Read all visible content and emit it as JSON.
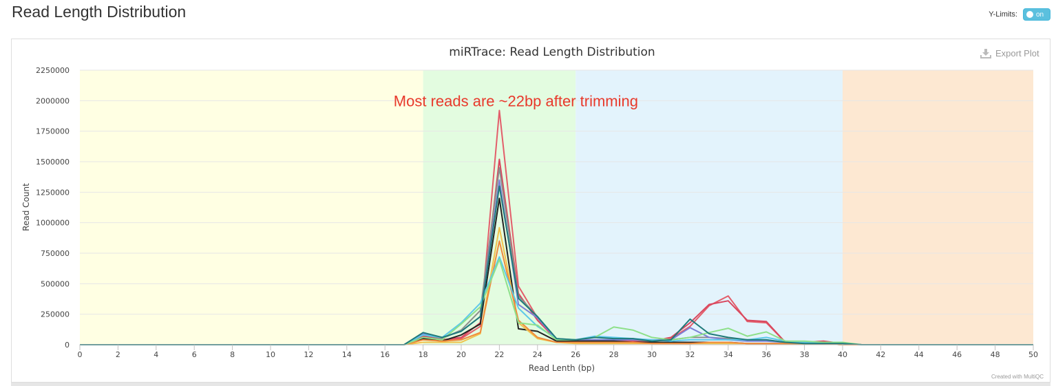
{
  "header": {
    "title": "Read Length Distribution"
  },
  "ylimits": {
    "label": "Y-Limits:",
    "toggle_text": "on"
  },
  "export": {
    "label": "Export Plot",
    "icon": "download-icon"
  },
  "credit": "Created with MultiQC",
  "chart_data": {
    "type": "line",
    "title": "miRTrace: Read Length Distribution",
    "xlabel": "Read Lenth (bp)",
    "ylabel": "Read Count",
    "xlim": [
      0,
      50
    ],
    "ylim": [
      0,
      2250000
    ],
    "xticks": [
      0,
      2,
      4,
      6,
      8,
      10,
      12,
      14,
      16,
      18,
      20,
      22,
      24,
      26,
      28,
      30,
      32,
      34,
      36,
      38,
      40,
      42,
      44,
      46,
      48,
      50
    ],
    "yticks": [
      0,
      250000,
      500000,
      750000,
      1000000,
      1250000,
      1500000,
      1750000,
      2000000,
      2250000
    ],
    "grid": true,
    "annotation": {
      "text": "Most reads are ~22bp after trimming",
      "x": 22,
      "y": 2000000,
      "color": "#e8392b"
    },
    "bands": [
      {
        "from": 0,
        "to": 18,
        "color": "#ffffe3"
      },
      {
        "from": 18,
        "to": 26,
        "color": "#e3fce0"
      },
      {
        "from": 26,
        "to": 40,
        "color": "#e3f3fc"
      },
      {
        "from": 40,
        "to": 50,
        "color": "#fde8d2"
      }
    ],
    "series": [
      {
        "color": "#e35d6a",
        "points": [
          [
            0,
            0
          ],
          [
            17,
            0
          ],
          [
            18,
            60000
          ],
          [
            19,
            30000
          ],
          [
            20,
            50000
          ],
          [
            21,
            150000
          ],
          [
            22,
            1920000
          ],
          [
            23,
            480000
          ],
          [
            24,
            220000
          ],
          [
            25,
            40000
          ],
          [
            26,
            30000
          ],
          [
            27,
            30000
          ],
          [
            28,
            30000
          ],
          [
            29,
            30000
          ],
          [
            30,
            30000
          ],
          [
            31,
            50000
          ],
          [
            32,
            150000
          ],
          [
            33,
            320000
          ],
          [
            34,
            400000
          ],
          [
            35,
            190000
          ],
          [
            36,
            180000
          ],
          [
            37,
            20000
          ],
          [
            38,
            10000
          ],
          [
            39,
            20000
          ],
          [
            40,
            10000
          ],
          [
            41,
            0
          ],
          [
            50,
            0
          ]
        ]
      },
      {
        "color": "#d9475e",
        "points": [
          [
            0,
            0
          ],
          [
            17,
            0
          ],
          [
            18,
            70000
          ],
          [
            19,
            40000
          ],
          [
            20,
            60000
          ],
          [
            21,
            180000
          ],
          [
            22,
            1520000
          ],
          [
            23,
            420000
          ],
          [
            24,
            200000
          ],
          [
            25,
            40000
          ],
          [
            26,
            30000
          ],
          [
            27,
            40000
          ],
          [
            28,
            30000
          ],
          [
            29,
            30000
          ],
          [
            30,
            30000
          ],
          [
            31,
            60000
          ],
          [
            32,
            180000
          ],
          [
            33,
            330000
          ],
          [
            34,
            360000
          ],
          [
            35,
            200000
          ],
          [
            36,
            190000
          ],
          [
            37,
            20000
          ],
          [
            38,
            20000
          ],
          [
            39,
            30000
          ],
          [
            40,
            10000
          ],
          [
            41,
            0
          ],
          [
            50,
            0
          ]
        ]
      },
      {
        "color": "#8d8d8d",
        "points": [
          [
            0,
            0
          ],
          [
            17,
            0
          ],
          [
            18,
            80000
          ],
          [
            19,
            50000
          ],
          [
            20,
            120000
          ],
          [
            21,
            280000
          ],
          [
            22,
            1450000
          ],
          [
            23,
            400000
          ],
          [
            24,
            230000
          ],
          [
            25,
            40000
          ],
          [
            26,
            40000
          ],
          [
            27,
            40000
          ],
          [
            28,
            40000
          ],
          [
            29,
            40000
          ],
          [
            30,
            30000
          ],
          [
            31,
            40000
          ],
          [
            32,
            60000
          ],
          [
            33,
            60000
          ],
          [
            34,
            50000
          ],
          [
            35,
            40000
          ],
          [
            36,
            40000
          ],
          [
            37,
            20000
          ],
          [
            38,
            10000
          ],
          [
            39,
            10000
          ],
          [
            40,
            10000
          ],
          [
            41,
            0
          ],
          [
            50,
            0
          ]
        ]
      },
      {
        "color": "#7c80d6",
        "points": [
          [
            0,
            0
          ],
          [
            17,
            0
          ],
          [
            18,
            90000
          ],
          [
            19,
            60000
          ],
          [
            20,
            110000
          ],
          [
            21,
            230000
          ],
          [
            22,
            1350000
          ],
          [
            23,
            330000
          ],
          [
            24,
            220000
          ],
          [
            25,
            40000
          ],
          [
            26,
            40000
          ],
          [
            27,
            40000
          ],
          [
            28,
            40000
          ],
          [
            29,
            40000
          ],
          [
            30,
            40000
          ],
          [
            31,
            40000
          ],
          [
            32,
            140000
          ],
          [
            33,
            60000
          ],
          [
            34,
            40000
          ],
          [
            35,
            30000
          ],
          [
            36,
            30000
          ],
          [
            37,
            20000
          ],
          [
            38,
            10000
          ],
          [
            39,
            10000
          ],
          [
            40,
            10000
          ],
          [
            41,
            0
          ],
          [
            50,
            0
          ]
        ]
      },
      {
        "color": "#222222",
        "points": [
          [
            0,
            0
          ],
          [
            17,
            0
          ],
          [
            18,
            50000
          ],
          [
            19,
            30000
          ],
          [
            20,
            80000
          ],
          [
            21,
            170000
          ],
          [
            22,
            1200000
          ],
          [
            23,
            130000
          ],
          [
            24,
            110000
          ],
          [
            25,
            30000
          ],
          [
            26,
            30000
          ],
          [
            27,
            30000
          ],
          [
            28,
            30000
          ],
          [
            29,
            20000
          ],
          [
            30,
            20000
          ],
          [
            31,
            20000
          ],
          [
            32,
            20000
          ],
          [
            33,
            20000
          ],
          [
            34,
            20000
          ],
          [
            35,
            10000
          ],
          [
            36,
            10000
          ],
          [
            37,
            10000
          ],
          [
            38,
            10000
          ],
          [
            39,
            10000
          ],
          [
            40,
            0
          ],
          [
            41,
            0
          ],
          [
            50,
            0
          ]
        ]
      },
      {
        "color": "#f0c24b",
        "points": [
          [
            0,
            0
          ],
          [
            17,
            0
          ],
          [
            18,
            20000
          ],
          [
            19,
            20000
          ],
          [
            20,
            20000
          ],
          [
            21,
            90000
          ],
          [
            22,
            960000
          ],
          [
            23,
            180000
          ],
          [
            24,
            50000
          ],
          [
            25,
            20000
          ],
          [
            26,
            10000
          ],
          [
            27,
            10000
          ],
          [
            28,
            10000
          ],
          [
            29,
            10000
          ],
          [
            30,
            10000
          ],
          [
            31,
            10000
          ],
          [
            32,
            10000
          ],
          [
            33,
            10000
          ],
          [
            34,
            10000
          ],
          [
            35,
            10000
          ],
          [
            36,
            10000
          ],
          [
            37,
            10000
          ],
          [
            38,
            10000
          ],
          [
            39,
            10000
          ],
          [
            40,
            0
          ],
          [
            41,
            0
          ],
          [
            50,
            0
          ]
        ]
      },
      {
        "color": "#f08a3c",
        "points": [
          [
            0,
            0
          ],
          [
            17,
            0
          ],
          [
            18,
            40000
          ],
          [
            19,
            30000
          ],
          [
            20,
            40000
          ],
          [
            21,
            100000
          ],
          [
            22,
            850000
          ],
          [
            23,
            200000
          ],
          [
            24,
            60000
          ],
          [
            25,
            20000
          ],
          [
            26,
            20000
          ],
          [
            27,
            20000
          ],
          [
            28,
            20000
          ],
          [
            29,
            20000
          ],
          [
            30,
            10000
          ],
          [
            31,
            10000
          ],
          [
            32,
            10000
          ],
          [
            33,
            20000
          ],
          [
            34,
            20000
          ],
          [
            35,
            10000
          ],
          [
            36,
            10000
          ],
          [
            37,
            10000
          ],
          [
            38,
            10000
          ],
          [
            39,
            10000
          ],
          [
            40,
            0
          ],
          [
            41,
            0
          ],
          [
            50,
            0
          ]
        ]
      },
      {
        "color": "#5cc8e8",
        "points": [
          [
            0,
            0
          ],
          [
            17,
            0
          ],
          [
            18,
            80000
          ],
          [
            19,
            60000
          ],
          [
            20,
            180000
          ],
          [
            21,
            340000
          ],
          [
            22,
            720000
          ],
          [
            23,
            300000
          ],
          [
            24,
            150000
          ],
          [
            25,
            50000
          ],
          [
            26,
            40000
          ],
          [
            27,
            70000
          ],
          [
            28,
            60000
          ],
          [
            29,
            50000
          ],
          [
            30,
            40000
          ],
          [
            31,
            30000
          ],
          [
            32,
            40000
          ],
          [
            33,
            40000
          ],
          [
            34,
            40000
          ],
          [
            35,
            40000
          ],
          [
            36,
            60000
          ],
          [
            37,
            30000
          ],
          [
            38,
            20000
          ],
          [
            39,
            20000
          ],
          [
            40,
            10000
          ],
          [
            41,
            0
          ],
          [
            50,
            0
          ]
        ]
      },
      {
        "color": "#8ee08a",
        "points": [
          [
            0,
            0
          ],
          [
            17,
            0
          ],
          [
            18,
            60000
          ],
          [
            19,
            40000
          ],
          [
            20,
            170000
          ],
          [
            21,
            310000
          ],
          [
            22,
            700000
          ],
          [
            23,
            180000
          ],
          [
            24,
            160000
          ],
          [
            25,
            40000
          ],
          [
            26,
            40000
          ],
          [
            27,
            60000
          ],
          [
            28,
            145000
          ],
          [
            29,
            120000
          ],
          [
            30,
            60000
          ],
          [
            31,
            40000
          ],
          [
            32,
            60000
          ],
          [
            33,
            100000
          ],
          [
            34,
            135000
          ],
          [
            35,
            70000
          ],
          [
            36,
            105000
          ],
          [
            37,
            30000
          ],
          [
            38,
            30000
          ],
          [
            39,
            20000
          ],
          [
            40,
            20000
          ],
          [
            41,
            0
          ],
          [
            50,
            0
          ]
        ]
      },
      {
        "color": "#1f7a7a",
        "points": [
          [
            0,
            0
          ],
          [
            17,
            0
          ],
          [
            18,
            100000
          ],
          [
            19,
            60000
          ],
          [
            20,
            110000
          ],
          [
            21,
            230000
          ],
          [
            22,
            1300000
          ],
          [
            23,
            380000
          ],
          [
            24,
            230000
          ],
          [
            25,
            50000
          ],
          [
            26,
            40000
          ],
          [
            27,
            60000
          ],
          [
            28,
            50000
          ],
          [
            29,
            50000
          ],
          [
            30,
            30000
          ],
          [
            31,
            40000
          ],
          [
            32,
            210000
          ],
          [
            33,
            90000
          ],
          [
            34,
            60000
          ],
          [
            35,
            40000
          ],
          [
            36,
            40000
          ],
          [
            37,
            20000
          ],
          [
            38,
            10000
          ],
          [
            39,
            10000
          ],
          [
            40,
            10000
          ],
          [
            41,
            0
          ],
          [
            50,
            0
          ]
        ]
      }
    ]
  }
}
